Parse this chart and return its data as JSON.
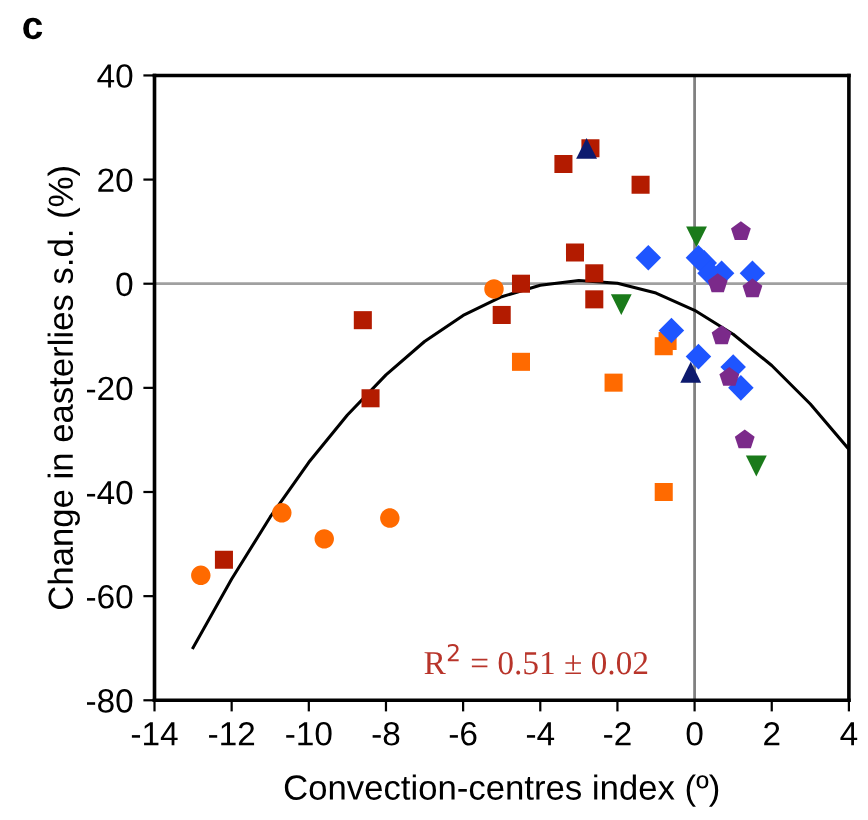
{
  "chart_data": {
    "type": "scatter",
    "xlabel": "Convection-centres index (º)",
    "ylabel": "Change in easterlies s.d. (%)",
    "annotations": [
      "c",
      "R$^{2}$ = 0.51 ± 0.02"
    ],
    "xlim": [
      -14,
      4
    ],
    "xticks": [
      -14,
      -12,
      -10,
      -8,
      -6,
      -4,
      -2,
      0,
      2,
      4
    ],
    "ylim": [
      -80,
      40
    ],
    "yticks": [
      -80,
      -60,
      -40,
      -20,
      0,
      20,
      40
    ],
    "grid": false,
    "legend": false,
    "ref_lines": [
      {
        "axis": "x",
        "value": 0,
        "color": "#808080"
      },
      {
        "axis": "y",
        "value": 0,
        "color": "#a0a0a0"
      }
    ],
    "series": [
      {
        "type": "line",
        "color": "#000000",
        "marker": "none",
        "line_style": "solid",
        "x": [
          -13,
          -12,
          -11,
          -10,
          -9,
          -8,
          -7,
          -6,
          -5,
          -4,
          -3,
          -2,
          -1,
          0,
          1,
          2,
          3,
          4
        ],
        "values": [
          -69.9,
          -56.7,
          -44.8,
          -34.3,
          -25.2,
          -17.5,
          -11.1,
          -6.1,
          -2.5,
          -0.3,
          0.6,
          0.1,
          -1.8,
          -5.1,
          -9.7,
          -15.7,
          -23.1,
          -31.8
        ]
      },
      {
        "color": "#b31b00",
        "marker": "square",
        "x": [
          -8.6,
          -8.4,
          -12.2,
          -5.0,
          -4.5,
          -3.1,
          -3.4,
          -2.7,
          -2.6,
          -2.6,
          -1.4
        ],
        "values": [
          -7,
          -22,
          -53,
          -6,
          0,
          6,
          23,
          26,
          2,
          -3,
          19
        ]
      },
      {
        "color": "#ff6a00",
        "marker": "circle",
        "x": [
          -12.8,
          -10.7,
          -9.6,
          -7.9,
          -5.2
        ],
        "values": [
          -56,
          -44,
          -49,
          -45,
          -1
        ]
      },
      {
        "color": "#ff6a00",
        "marker": "square",
        "x": [
          -4.5,
          -2.1,
          -0.8,
          -0.7,
          -0.8
        ],
        "values": [
          -15,
          -19,
          -12,
          -11,
          -40
        ]
      },
      {
        "color": "#1a7a1a",
        "marker": "triangle_down",
        "x": [
          0.05,
          -1.9,
          1.6
        ],
        "values": [
          9,
          -4,
          -35
        ]
      },
      {
        "color": "#0d1a6e",
        "marker": "triangle",
        "x": [
          -2.8,
          -0.1
        ],
        "values": [
          26,
          -17
        ]
      },
      {
        "color": "#1e55ff",
        "marker": "diamond",
        "x": [
          -1.2,
          0.1,
          0.25,
          0.4,
          0.7,
          1.5,
          -0.6,
          0.1,
          1.0,
          1.2
        ],
        "values": [
          5,
          5,
          4,
          2,
          2,
          2,
          -9,
          -14,
          -16,
          -20
        ]
      },
      {
        "color": "#7b2a8a",
        "x": [
          1.2,
          0.6,
          1.5,
          0.7,
          0.9,
          1.3
        ],
        "values": [
          10,
          0,
          -1,
          -10,
          -18,
          -30
        ]
      }
    ]
  }
}
